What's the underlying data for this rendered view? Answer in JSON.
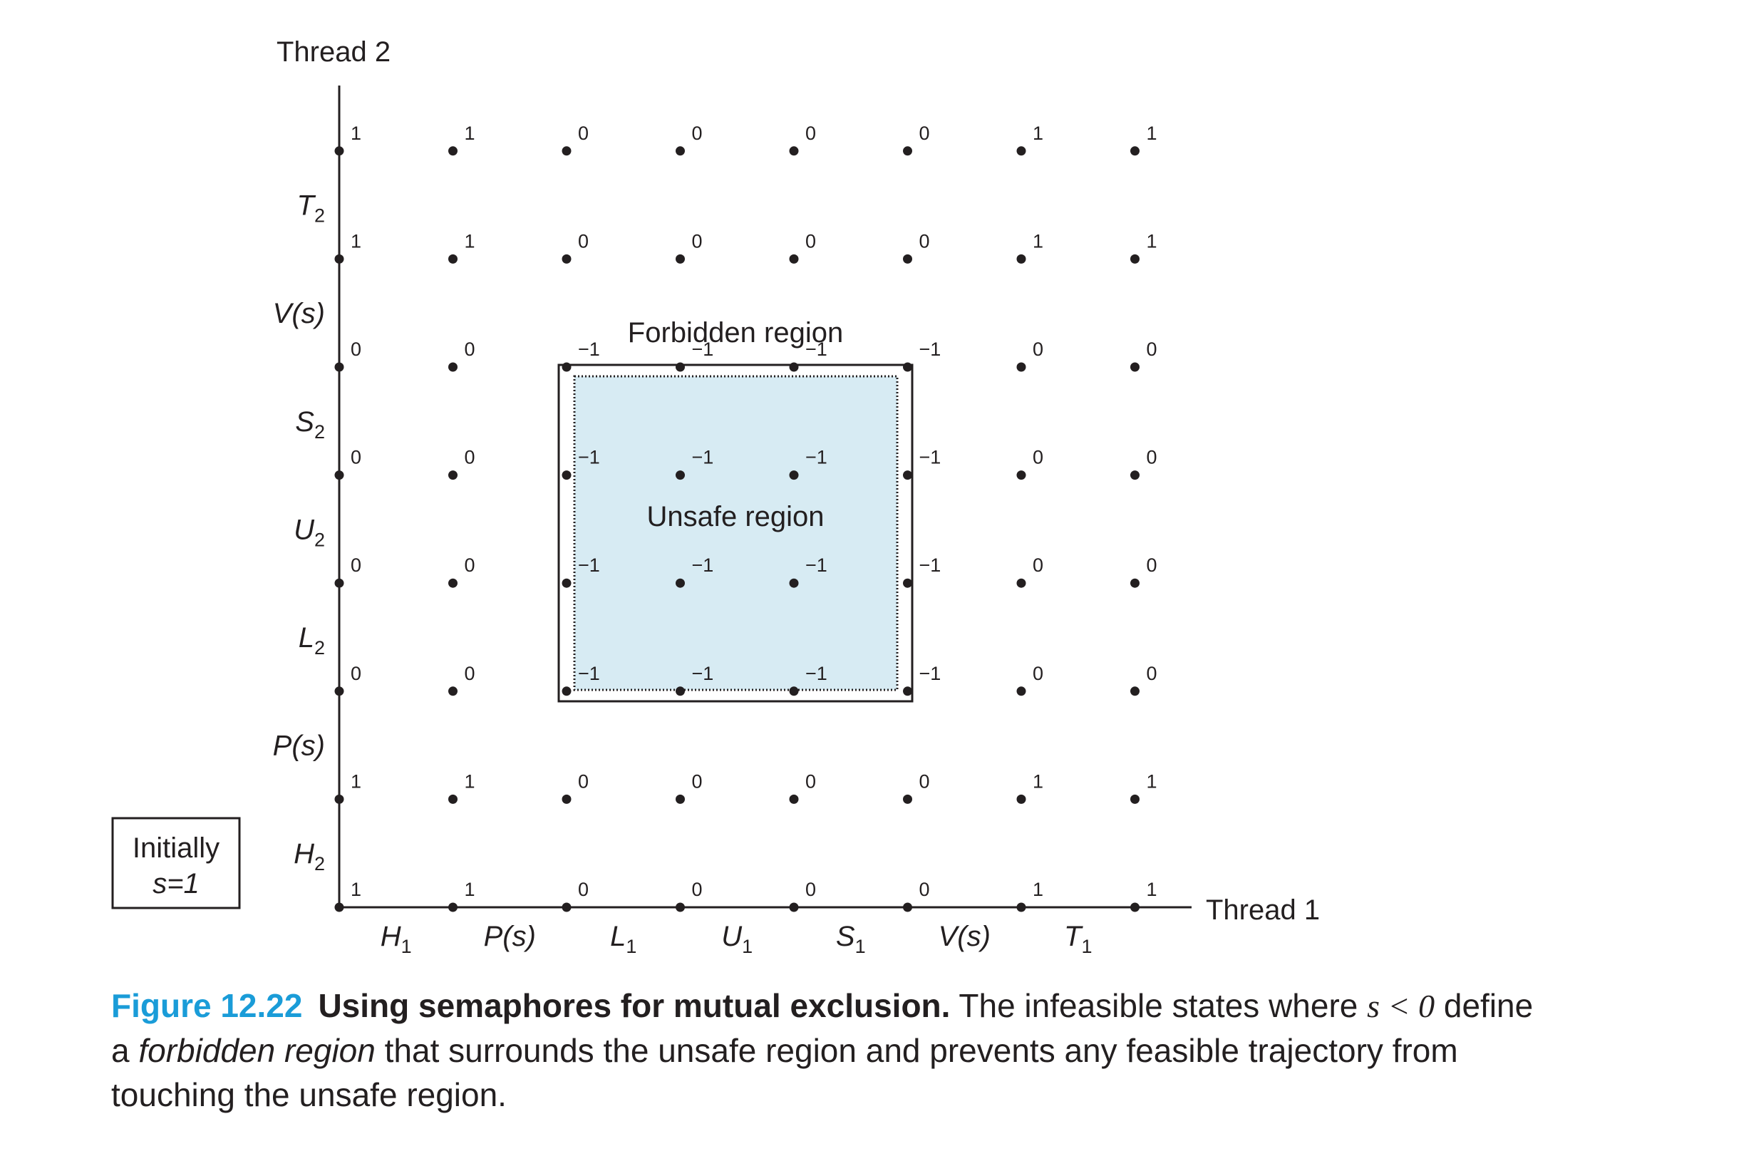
{
  "thread1_label": "Thread 1",
  "thread2_label": "Thread 2",
  "initial_box": {
    "line1": "Initially",
    "line2": "s=1"
  },
  "forbidden_label": "Forbidden region",
  "unsafe_label": "Unsafe region",
  "x_ticks": [
    {
      "main": "H",
      "sub": "1"
    },
    {
      "main": "P(s)",
      "sub": ""
    },
    {
      "main": "L",
      "sub": "1"
    },
    {
      "main": "U",
      "sub": "1"
    },
    {
      "main": "S",
      "sub": "1"
    },
    {
      "main": "V(s)",
      "sub": ""
    },
    {
      "main": "T",
      "sub": "1"
    }
  ],
  "y_ticks": [
    {
      "main": "H",
      "sub": "2"
    },
    {
      "main": "P(s)",
      "sub": ""
    },
    {
      "main": "L",
      "sub": "2"
    },
    {
      "main": "U",
      "sub": "2"
    },
    {
      "main": "S",
      "sub": "2"
    },
    {
      "main": "V(s)",
      "sub": ""
    },
    {
      "main": "T",
      "sub": "2"
    }
  ],
  "grid_values": [
    [
      "1",
      "1",
      "0",
      "0",
      "0",
      "0",
      "1",
      "1"
    ],
    [
      "1",
      "1",
      "0",
      "0",
      "0",
      "0",
      "1",
      "1"
    ],
    [
      "0",
      "0",
      "−1",
      "−1",
      "−1",
      "−1",
      "0",
      "0"
    ],
    [
      "0",
      "0",
      "−1",
      "−1",
      "−1",
      "−1",
      "0",
      "0"
    ],
    [
      "0",
      "0",
      "−1",
      "−1",
      "−1",
      "−1",
      "0",
      "0"
    ],
    [
      "0",
      "0",
      "−1",
      "−1",
      "−1",
      "−1",
      "0",
      "0"
    ],
    [
      "1",
      "1",
      "0",
      "0",
      "0",
      "0",
      "1",
      "1"
    ],
    [
      "1",
      "1",
      "0",
      "0",
      "0",
      "0",
      "1",
      "1"
    ]
  ],
  "colors": {
    "unsafe_fill": "#d7ebf3",
    "figure_number": "#1a9cd8",
    "ink": "#231f20"
  },
  "caption": {
    "figure_number": "Figure 12.22",
    "title": "Using semaphores for mutual exclusion.",
    "text_1": "The infeasible states where",
    "math": "s < 0",
    "text_2": "define a",
    "emphasis": "forbidden region",
    "text_3": "that surrounds the unsafe region and prevents any feasible trajectory from touching the unsafe region."
  }
}
